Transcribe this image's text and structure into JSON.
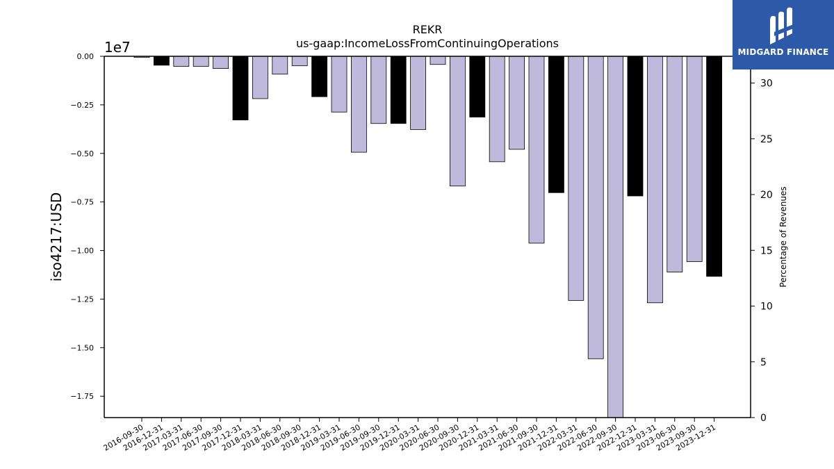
{
  "chart_data": {
    "type": "bar",
    "title": "REKR",
    "subtitle": "us-gaap:IncomeLossFromContinuingOperations",
    "ylabel": "iso4217:USD",
    "y2label": "Percentage of Revenues",
    "offset_text": "1e7",
    "categories": [
      "2016-09-30",
      "2016-12-31",
      "2017-03-31",
      "2017-06-30",
      "2017-09-30",
      "2017-12-31",
      "2018-03-31",
      "2018-06-30",
      "2018-09-30",
      "2018-12-31",
      "2019-03-31",
      "2019-06-30",
      "2019-09-30",
      "2019-12-31",
      "2020-03-31",
      "2020-06-30",
      "2020-09-30",
      "2020-12-31",
      "2021-03-31",
      "2021-06-30",
      "2021-09-30",
      "2021-12-31",
      "2022-03-31",
      "2022-06-30",
      "2022-09-30",
      "2022-12-31",
      "2023-03-31",
      "2023-06-30",
      "2023-09-30",
      "2023-12-31"
    ],
    "values": [
      -60000,
      -460000,
      -520000,
      -520000,
      -630000,
      -3280000,
      -2180000,
      -920000,
      -490000,
      -2080000,
      -2870000,
      -4940000,
      -3460000,
      -3460000,
      -3770000,
      -420000,
      -6680000,
      -3130000,
      -5430000,
      -4790000,
      -9620000,
      -7020000,
      -12570000,
      -15570000,
      -18600000,
      -7190000,
      -12690000,
      -11110000,
      -10570000,
      -11330000
    ],
    "annual": [
      false,
      true,
      false,
      false,
      false,
      true,
      false,
      false,
      false,
      true,
      false,
      false,
      false,
      true,
      false,
      false,
      false,
      true,
      false,
      false,
      false,
      true,
      false,
      false,
      false,
      true,
      false,
      false,
      false,
      true
    ],
    "colors": {
      "quarterly": "#bfbadb",
      "annual": "#000000",
      "edge": "#000000"
    },
    "ylim": [
      -18600000,
      0
    ],
    "yticks": [
      0,
      -2500000,
      -5000000,
      -7500000,
      -10000000,
      -12500000,
      -15000000,
      -17500000
    ],
    "ytick_labels": [
      "0.00",
      "−0.25",
      "−0.50",
      "−0.75",
      "−1.00",
      "−1.25",
      "−1.50",
      "−1.75"
    ],
    "y2lim": [
      0,
      32.4
    ],
    "y2ticks": [
      0,
      5,
      10,
      15,
      20,
      25,
      30
    ],
    "y2tick_labels": [
      "0",
      "5",
      "10",
      "15",
      "20",
      "25",
      "30"
    ],
    "grid": false
  },
  "logo": {
    "text": "MIDGARD FINANCE"
  }
}
